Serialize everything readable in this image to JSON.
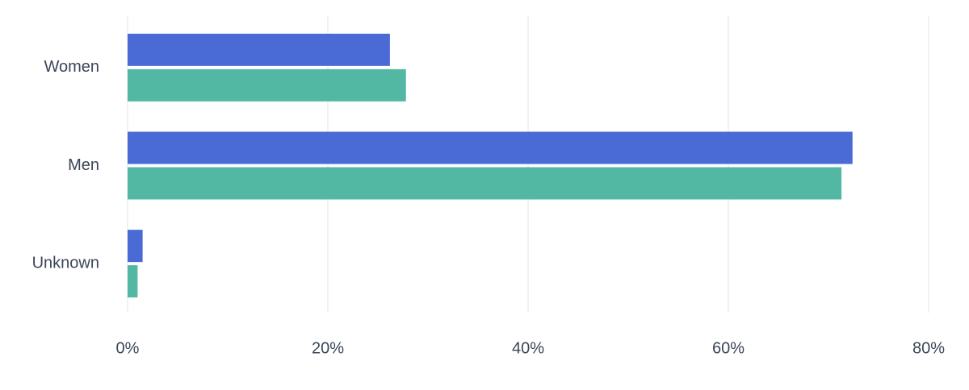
{
  "chart_data": {
    "type": "bar",
    "orientation": "horizontal",
    "categories": [
      "Women",
      "Men",
      "Unknown"
    ],
    "series": [
      {
        "color": "#4a6ad5",
        "values": [
          26.2,
          72.4,
          1.5
        ]
      },
      {
        "color": "#52b8a3",
        "values": [
          27.8,
          71.3,
          1.0
        ]
      }
    ],
    "xlim": [
      0,
      80
    ],
    "xticks": [
      {
        "value": 0,
        "label": "0%"
      },
      {
        "value": 20,
        "label": "20%"
      },
      {
        "value": 40,
        "label": "40%"
      },
      {
        "value": 60,
        "label": "60%"
      },
      {
        "value": 80,
        "label": "80%"
      }
    ],
    "grid": true
  }
}
